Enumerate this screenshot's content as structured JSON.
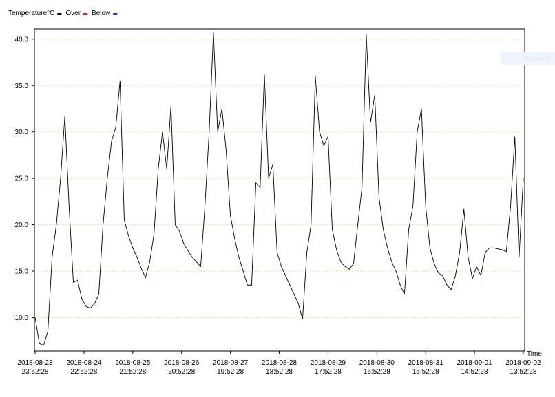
{
  "chart_data": {
    "type": "line",
    "legend": {
      "title": "Temperature°C",
      "title_color": "#000000",
      "entries": [
        {
          "name": "Over",
          "color": "#e8101a"
        },
        {
          "name": "Below",
          "color": "#1a2be8"
        }
      ]
    },
    "x_label": "Time",
    "watermark": "Techtech",
    "x": [
      "2018-08-23 23:52:28",
      "2018-08-24 01:52:28",
      "2018-08-24 03:52:28",
      "2018-08-24 05:52:28",
      "2018-08-24 07:52:28",
      "2018-08-24 09:52:28",
      "2018-08-24 11:52:28",
      "2018-08-24 13:52:28",
      "2018-08-24 15:52:28",
      "2018-08-24 17:52:28",
      "2018-08-24 19:52:28",
      "2018-08-24 21:52:28",
      "2018-08-24 23:52:28",
      "2018-08-25 01:52:28",
      "2018-08-25 03:52:28",
      "2018-08-25 05:52:28",
      "2018-08-25 07:52:28",
      "2018-08-25 09:52:28",
      "2018-08-25 11:52:28",
      "2018-08-25 13:52:28",
      "2018-08-25 15:52:28",
      "2018-08-25 17:52:28",
      "2018-08-25 19:52:28",
      "2018-08-25 21:52:28",
      "2018-08-25 23:52:28",
      "2018-08-26 01:52:28",
      "2018-08-26 03:52:28",
      "2018-08-26 05:52:28",
      "2018-08-26 07:52:28",
      "2018-08-26 09:52:28",
      "2018-08-26 11:52:28",
      "2018-08-26 13:52:28",
      "2018-08-26 15:52:28",
      "2018-08-26 17:52:28",
      "2018-08-26 19:52:28",
      "2018-08-26 21:52:28",
      "2018-08-26 23:52:28",
      "2018-08-27 01:52:28",
      "2018-08-27 03:52:28",
      "2018-08-27 05:52:28",
      "2018-08-27 07:52:28",
      "2018-08-27 09:52:28",
      "2018-08-27 11:52:28",
      "2018-08-27 13:52:28",
      "2018-08-27 15:52:28",
      "2018-08-27 17:52:28",
      "2018-08-27 19:52:28",
      "2018-08-27 21:52:28",
      "2018-08-27 23:52:28",
      "2018-08-28 01:52:28",
      "2018-08-28 03:52:28",
      "2018-08-28 05:52:28",
      "2018-08-28 07:52:28",
      "2018-08-28 09:52:28",
      "2018-08-28 11:52:28",
      "2018-08-28 13:52:28",
      "2018-08-28 15:52:28",
      "2018-08-28 17:52:28",
      "2018-08-28 19:52:28",
      "2018-08-28 21:52:28",
      "2018-08-28 23:52:28",
      "2018-08-29 01:52:28",
      "2018-08-29 03:52:28",
      "2018-08-29 05:52:28",
      "2018-08-29 07:52:28",
      "2018-08-29 09:52:28",
      "2018-08-29 11:52:28",
      "2018-08-29 13:52:28",
      "2018-08-29 15:52:28",
      "2018-08-29 17:52:28",
      "2018-08-29 19:52:28",
      "2018-08-29 21:52:28",
      "2018-08-29 23:52:28",
      "2018-08-30 01:52:28",
      "2018-08-30 03:52:28",
      "2018-08-30 05:52:28",
      "2018-08-30 07:52:28",
      "2018-08-30 09:52:28",
      "2018-08-30 11:52:28",
      "2018-08-30 13:52:28",
      "2018-08-30 15:52:28",
      "2018-08-30 17:52:28",
      "2018-08-30 19:52:28",
      "2018-08-30 21:52:28",
      "2018-08-30 23:52:28",
      "2018-08-31 01:52:28",
      "2018-08-31 03:52:28",
      "2018-08-31 05:52:28",
      "2018-08-31 07:52:28",
      "2018-08-31 09:52:28",
      "2018-08-31 11:52:28",
      "2018-08-31 13:52:28",
      "2018-08-31 15:52:28",
      "2018-08-31 17:52:28",
      "2018-08-31 19:52:28",
      "2018-08-31 21:52:28",
      "2018-08-31 23:52:28",
      "2018-09-01 01:52:28",
      "2018-09-01 03:52:28",
      "2018-09-01 05:52:28",
      "2018-09-01 07:52:28",
      "2018-09-01 09:52:28",
      "2018-09-01 11:52:28",
      "2018-09-01 13:52:28",
      "2018-09-01 15:52:28",
      "2018-09-01 17:52:28",
      "2018-09-01 19:52:28",
      "2018-09-01 21:52:28",
      "2018-09-01 23:52:28",
      "2018-09-02 01:52:28",
      "2018-09-02 03:52:28",
      "2018-09-02 05:52:28",
      "2018-09-02 07:52:28",
      "2018-09-02 09:52:28",
      "2018-09-02 11:52:28",
      "2018-09-02 13:52:28"
    ],
    "series": [
      {
        "name": "Temperature°C",
        "color": "#000000",
        "values": [
          10.0,
          7.2,
          7.0,
          8.5,
          16.5,
          20,
          25,
          31.7,
          22,
          13.8,
          14,
          12,
          11.2,
          11,
          11.5,
          12.5,
          20,
          25,
          29,
          30.5,
          35.5,
          20.5,
          18.8,
          17.5,
          16.5,
          15.3,
          14.3,
          16,
          19,
          26,
          30,
          26,
          32.8,
          20,
          19.3,
          18,
          17.2,
          16.5,
          16,
          15.5,
          22,
          30,
          40.7,
          30,
          32.5,
          28,
          21,
          18.5,
          16.5,
          15,
          13.5,
          13.5,
          24.5,
          24,
          36.2,
          25,
          26.5,
          17,
          15.5,
          14.5,
          13.5,
          12.5,
          11.5,
          9.8,
          17,
          20,
          36,
          30,
          28.5,
          29.5,
          19.5,
          17.3,
          16,
          15.5,
          15.2,
          15.8,
          20,
          24,
          40.5,
          31,
          34,
          23,
          19.5,
          17.5,
          16,
          15,
          13.5,
          12.5,
          19.5,
          22,
          30,
          32.5,
          22,
          17.5,
          15.8,
          14.8,
          14.5,
          13.5,
          13,
          14.5,
          17,
          21.7,
          16.5,
          14.2,
          15.5,
          14.5,
          17,
          17.5,
          17.5,
          17.4,
          17.3,
          17.1,
          22,
          29.5,
          16.5,
          25
        ]
      }
    ],
    "xlim": [
      "2018-08-23 23:52:28",
      "2018-09-02 13:52:28"
    ],
    "xticks": [
      "2018-08-23 23:52:28",
      "2018-08-24 22:52:28",
      "2018-08-25 21:52:28",
      "2018-08-26 20:52:28",
      "2018-08-27 19:52:28",
      "2018-08-28 18:52:28",
      "2018-08-29 17:52:28",
      "2018-08-30 16:52:28",
      "2018-08-31 15:52:28",
      "2018-09-01 14:52:28",
      "2018-09-02 13:52:28"
    ],
    "ylim": [
      6.4,
      41.1
    ],
    "yticks": [
      {
        "value": 10,
        "label": "10.0"
      },
      {
        "value": 15,
        "label": "15.0"
      },
      {
        "value": 20,
        "label": "20.0"
      },
      {
        "value": 25,
        "label": "25.0"
      },
      {
        "value": 30,
        "label": "30.0"
      },
      {
        "value": 35,
        "label": "35.0"
      },
      {
        "value": 40,
        "label": "40.0"
      }
    ],
    "grid": true,
    "grid_color": "#f5d9a8"
  }
}
